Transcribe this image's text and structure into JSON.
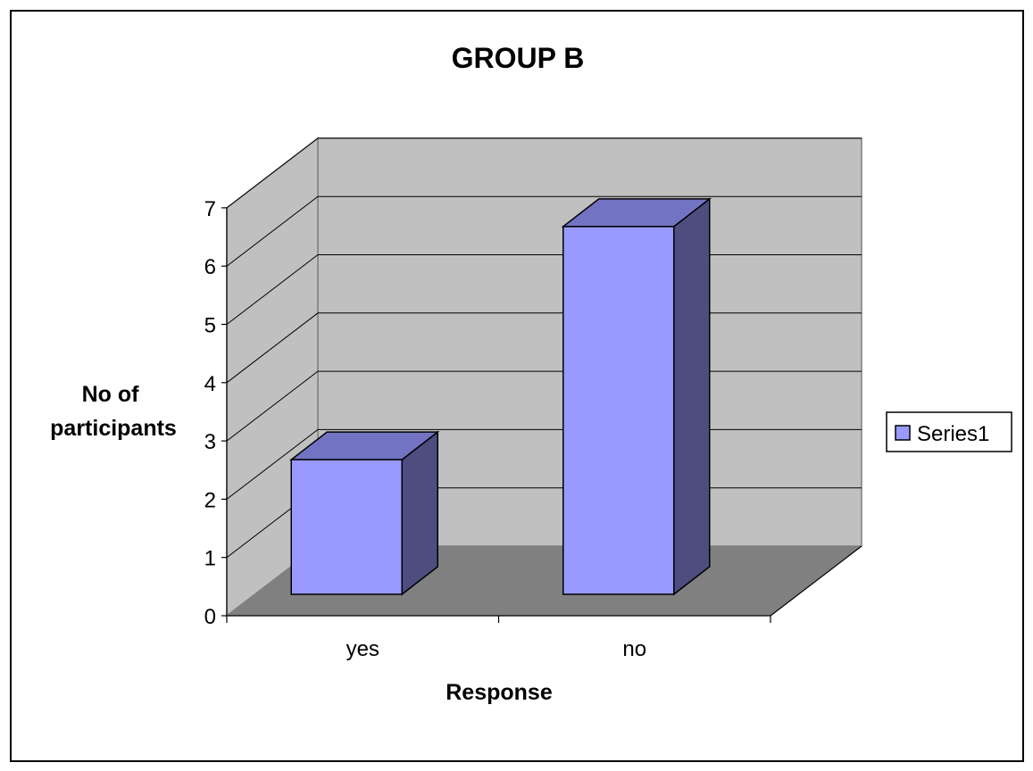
{
  "chart_data": {
    "type": "bar",
    "style": "3d-column",
    "title": "GROUP B",
    "xlabel": "Response",
    "ylabel_lines": [
      "No of",
      "participants"
    ],
    "categories": [
      "yes",
      "no"
    ],
    "series": [
      {
        "name": "Series1",
        "values": [
          3,
          7
        ],
        "color": "#9999ff"
      }
    ],
    "ylim": [
      0,
      7
    ],
    "yticks": [
      0,
      1,
      2,
      3,
      4,
      5,
      6,
      7
    ],
    "grid": true,
    "legend": "right",
    "colors": {
      "bar_front": "#9999ff",
      "bar_top": "#7373c4",
      "bar_side": "#4d4d80",
      "back_wall": "#c0c0c0",
      "side_wall": "#c0c0c0",
      "floor": "#808080"
    }
  }
}
